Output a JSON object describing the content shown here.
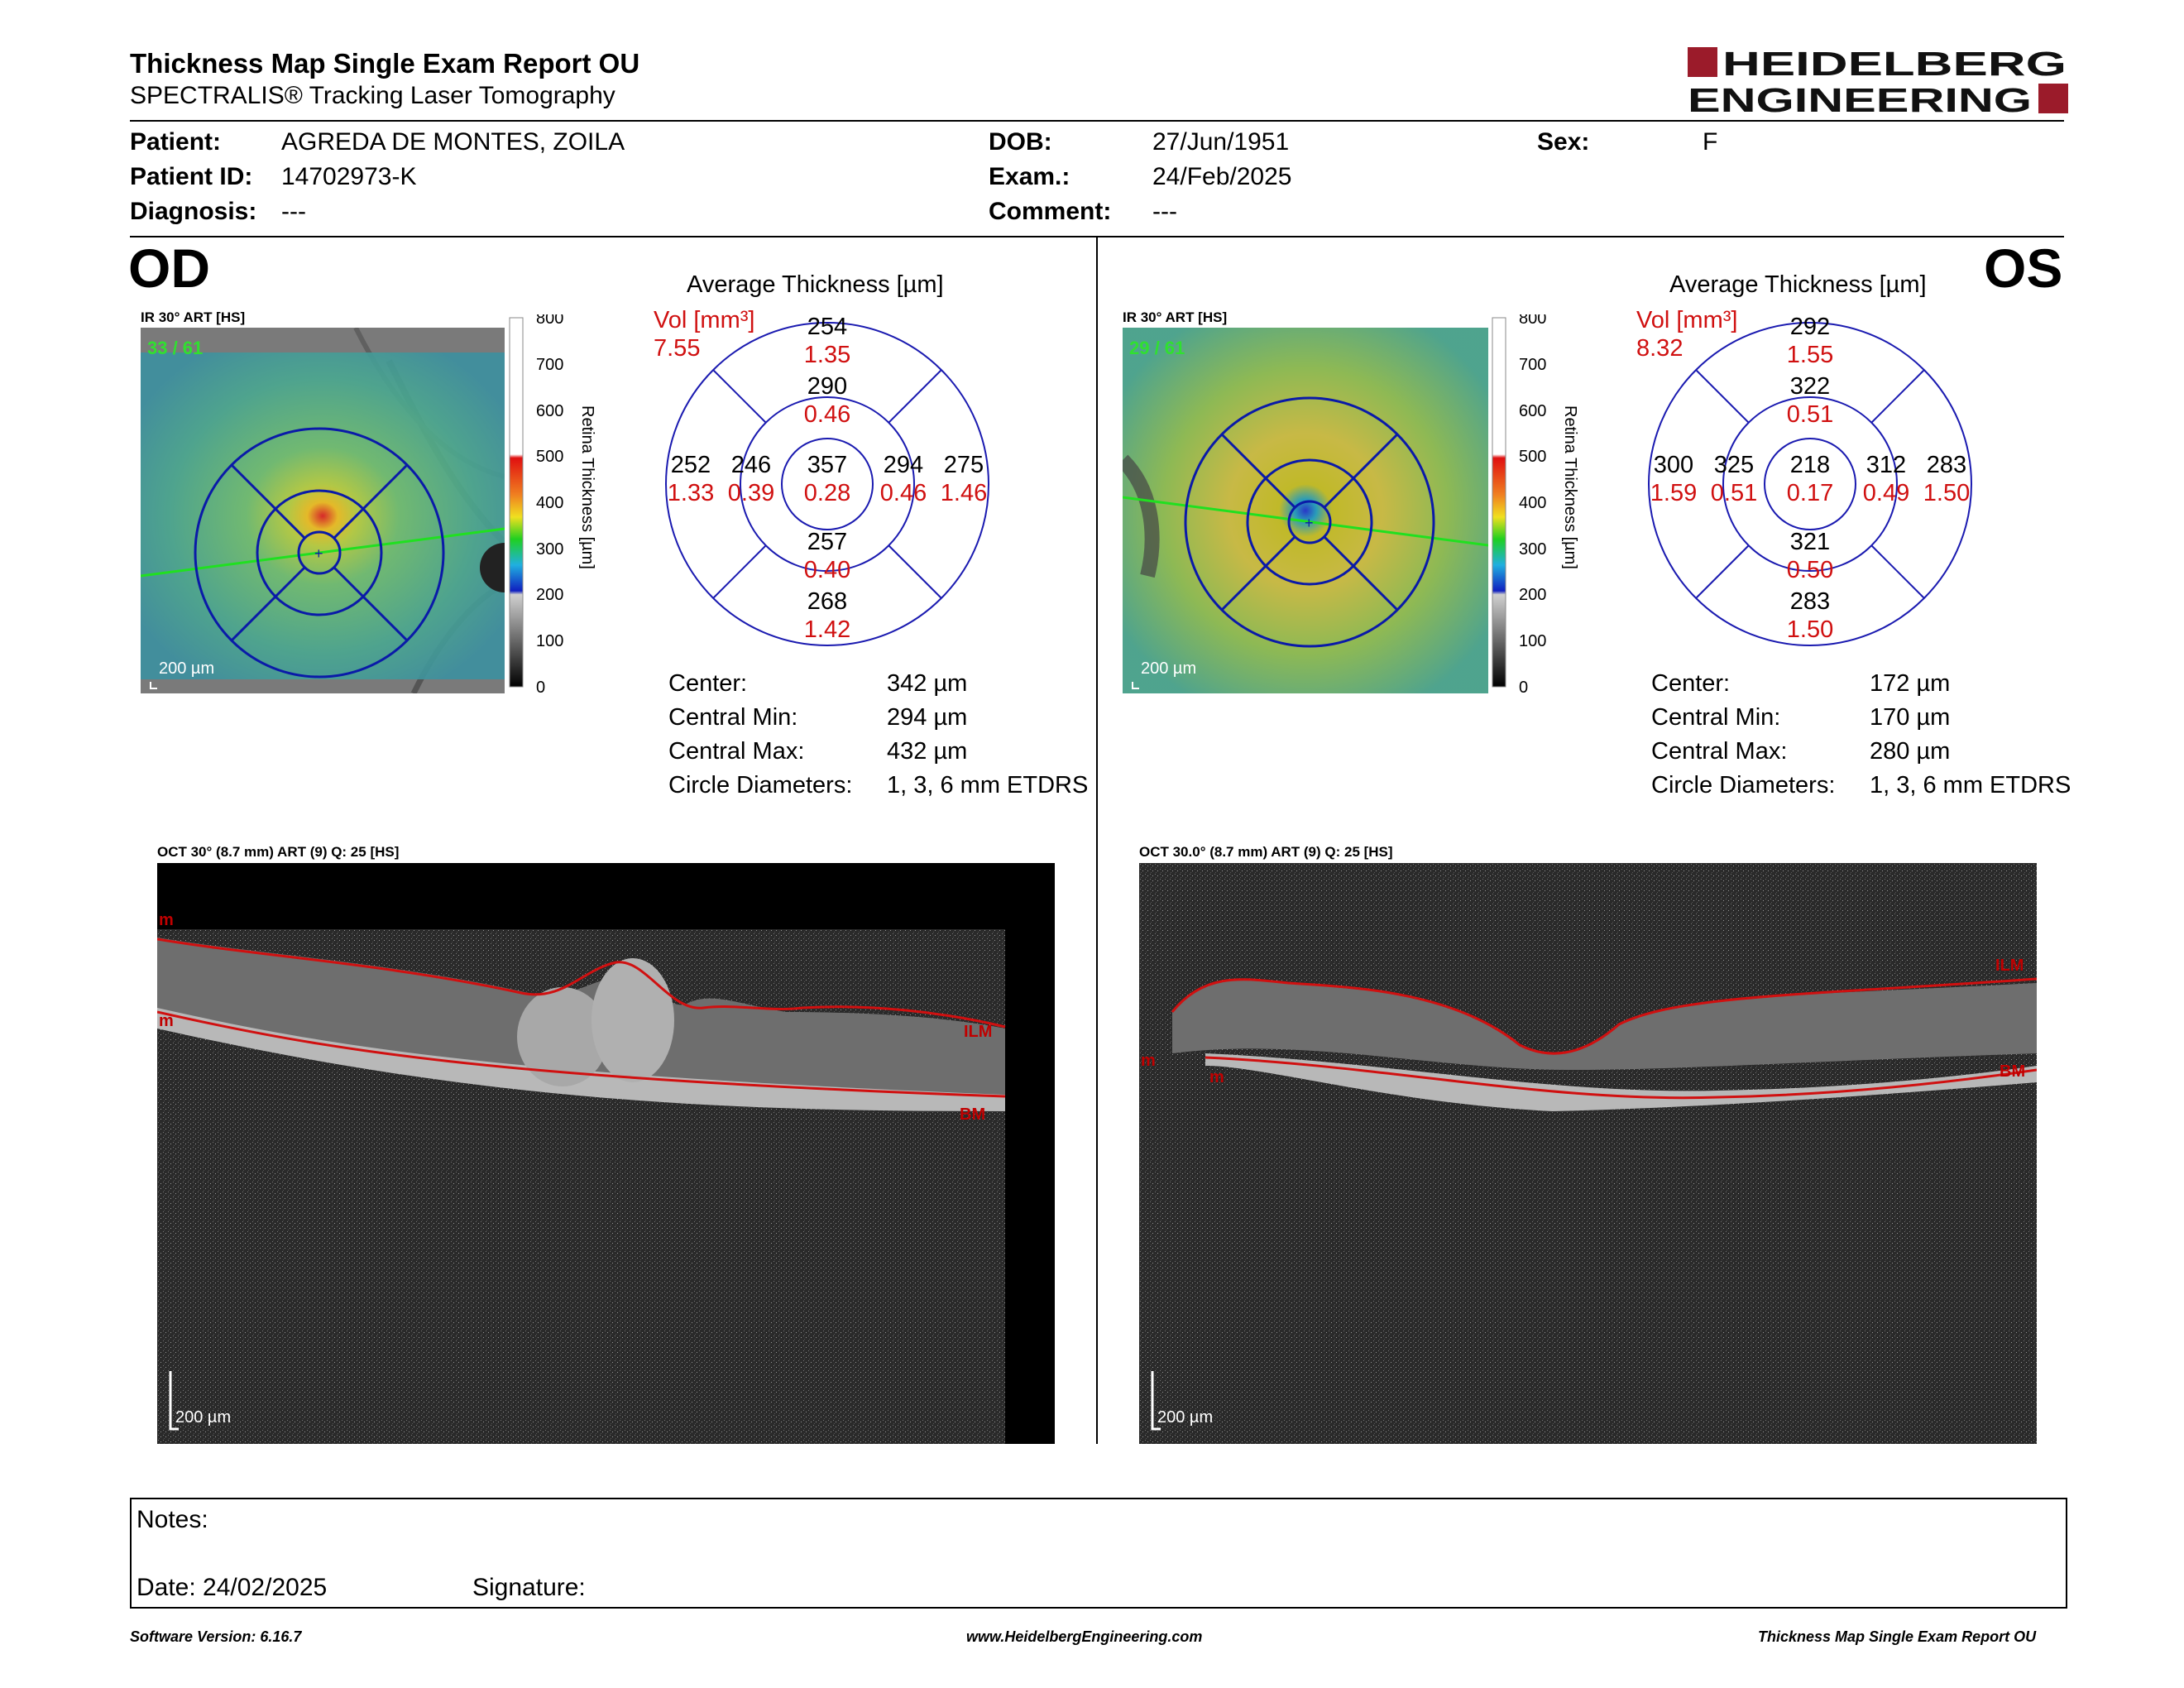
{
  "report": {
    "title": "Thickness Map Single Exam Report OU",
    "subtitle": "SPECTRALIS® Tracking Laser Tomography",
    "brand_line1": "HEIDELBERG",
    "brand_line2": "ENGINEERING",
    "brand_color": "#9b1b2a"
  },
  "patient": {
    "patient_label": "Patient:",
    "patient_value": "AGREDA DE MONTES, ZOILA",
    "id_label": "Patient ID:",
    "id_value": "14702973-K",
    "diagnosis_label": "Diagnosis:",
    "diagnosis_value": "---",
    "dob_label": "DOB:",
    "dob_value": "27/Jun/1951",
    "exam_label": "Exam.:",
    "exam_value": "24/Feb/2025",
    "comment_label": "Comment:",
    "comment_value": "---",
    "sex_label": "Sex:",
    "sex_value": "F"
  },
  "od": {
    "eye": "OD",
    "ir_label": "IR 30° ART [HS]",
    "ir_counter": "33 / 61",
    "ir_scale": "200 µm",
    "chart_title": "Average Thickness [µm]",
    "vol_label": "Vol [mm³]",
    "vol_total": "7.55",
    "stats": {
      "center_label": "Center:",
      "center_value": "342 µm",
      "min_label": "Central Min:",
      "min_value": "294 µm",
      "max_label": "Central Max:",
      "max_value": "432 µm",
      "diam_label": "Circle Diameters:",
      "diam_value": "1, 3, 6 mm ETDRS"
    },
    "oct_label": "OCT 30° (8.7 mm) ART (9) Q: 25 [HS]",
    "oct_scale": "200 µm",
    "ilm_label": "ILM",
    "bm_label": "BM",
    "m_label_1": "m",
    "m_label_2": "m"
  },
  "os": {
    "eye": "OS",
    "ir_label": "IR 30° ART [HS]",
    "ir_counter": "29 / 61",
    "ir_scale": "200 µm",
    "chart_title": "Average Thickness [µm]",
    "vol_label": "Vol [mm³]",
    "vol_total": "8.32",
    "stats": {
      "center_label": "Center:",
      "center_value": "172 µm",
      "min_label": "Central Min:",
      "min_value": "170 µm",
      "max_label": "Central Max:",
      "max_value": "280 µm",
      "diam_label": "Circle Diameters:",
      "diam_value": "1, 3, 6 mm ETDRS"
    },
    "oct_label": "OCT 30.0° (8.7 mm) ART (9) Q: 25 [HS]",
    "oct_scale": "200 µm",
    "ilm_label": "ILM",
    "bm_label": "BM",
    "m_label_1": "m"
  },
  "colorbar": {
    "title": "Retina Thickness [µm]",
    "ticks": [
      "800",
      "700",
      "600",
      "500",
      "400",
      "300",
      "200",
      "100",
      "0"
    ]
  },
  "chart_data": [
    {
      "type": "table",
      "title": "Average Thickness [µm]",
      "eye": "OD",
      "sectors": {
        "center": {
          "thickness": "357",
          "volume": "0.28"
        },
        "inner_superior": {
          "thickness": "290",
          "volume": "0.46"
        },
        "inner_nasal_left": {
          "thickness": "246",
          "volume": "0.39"
        },
        "inner_right": {
          "thickness": "294",
          "volume": "0.46"
        },
        "inner_inferior": {
          "thickness": "257",
          "volume": "0.40"
        },
        "outer_superior": {
          "thickness": "254",
          "volume": "1.35"
        },
        "outer_left": {
          "thickness": "252",
          "volume": "1.33"
        },
        "outer_right": {
          "thickness": "275",
          "volume": "1.46"
        },
        "outer_inferior": {
          "thickness": "268",
          "volume": "1.42"
        }
      }
    },
    {
      "type": "table",
      "title": "Average Thickness [µm]",
      "eye": "OS",
      "sectors": {
        "center": {
          "thickness": "218",
          "volume": "0.17"
        },
        "inner_superior": {
          "thickness": "322",
          "volume": "0.51"
        },
        "inner_nasal_left": {
          "thickness": "325",
          "volume": "0.51"
        },
        "inner_right": {
          "thickness": "312",
          "volume": "0.49"
        },
        "inner_inferior": {
          "thickness": "321",
          "volume": "0.50"
        },
        "outer_superior": {
          "thickness": "292",
          "volume": "1.55"
        },
        "outer_left": {
          "thickness": "300",
          "volume": "1.59"
        },
        "outer_right": {
          "thickness": "283",
          "volume": "1.50"
        },
        "outer_inferior": {
          "thickness": "283",
          "volume": "1.50"
        }
      }
    }
  ],
  "notes": {
    "notes_label": "Notes:",
    "date_label": "Date: 24/02/2025",
    "signature_label": "Signature:"
  },
  "footer": {
    "software": "Software Version: 6.16.7",
    "website": "www.HeidelbergEngineering.com",
    "report_name": "Thickness Map Single Exam Report OU"
  }
}
